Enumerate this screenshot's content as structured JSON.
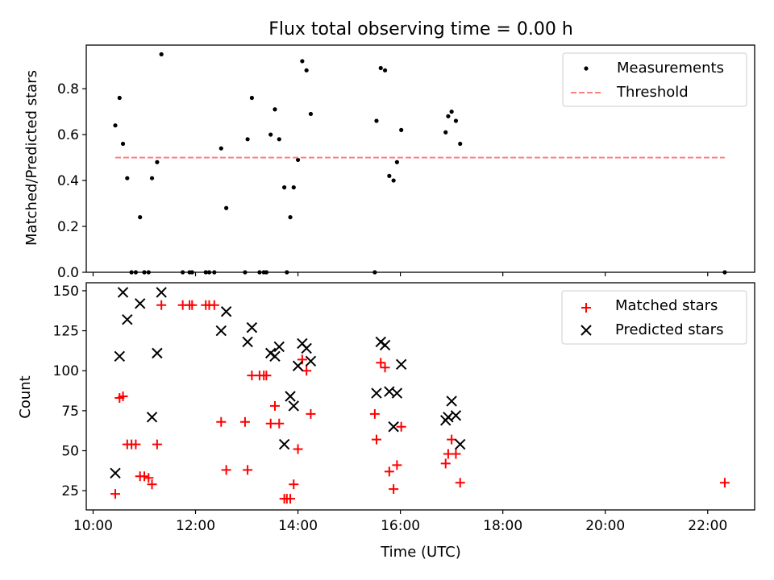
{
  "figure": {
    "title": "Flux total observing time = 0.00 h",
    "xlabel": "Time (UTC)",
    "x_ticks": [
      "10:00",
      "12:00",
      "14:00",
      "16:00",
      "18:00",
      "20:00",
      "22:00"
    ]
  },
  "chart_data": [
    {
      "type": "scatter",
      "panel": "top",
      "ylabel": "Matched/Predicted stars",
      "xlim": [
        "09:52",
        "22:55"
      ],
      "ylim": [
        0,
        0.99
      ],
      "y_ticks": [
        "0.0",
        "0.2",
        "0.4",
        "0.6",
        "0.8"
      ],
      "legend": {
        "placement": "top-right",
        "entries": [
          "Measurements",
          "Threshold"
        ]
      },
      "series": [
        {
          "name": "Measurements",
          "color": "#000000",
          "marker": "dot",
          "points": [
            [
              "10:26",
              0.64
            ],
            [
              "10:31",
              0.76
            ],
            [
              "10:35",
              0.56
            ],
            [
              "10:40",
              0.41
            ],
            [
              "10:45",
              0.0
            ],
            [
              "10:50",
              0.0
            ],
            [
              "10:55",
              0.24
            ],
            [
              "11:00",
              0.0
            ],
            [
              "11:05",
              0.0
            ],
            [
              "11:09",
              0.41
            ],
            [
              "11:15",
              0.48
            ],
            [
              "11:20",
              0.95
            ],
            [
              "11:45",
              0.0
            ],
            [
              "11:53",
              0.0
            ],
            [
              "11:56",
              0.0
            ],
            [
              "12:12",
              0.0
            ],
            [
              "12:16",
              0.0
            ],
            [
              "12:22",
              0.0
            ],
            [
              "12:30",
              0.54
            ],
            [
              "12:36",
              0.28
            ],
            [
              "12:58",
              0.0
            ],
            [
              "13:01",
              0.58
            ],
            [
              "13:06",
              0.76
            ],
            [
              "13:15",
              0.0
            ],
            [
              "13:20",
              0.0
            ],
            [
              "13:23",
              0.0
            ],
            [
              "13:28",
              0.6
            ],
            [
              "13:33",
              0.71
            ],
            [
              "13:38",
              0.58
            ],
            [
              "13:44",
              0.37
            ],
            [
              "13:47",
              0.0
            ],
            [
              "13:51",
              0.24
            ],
            [
              "13:55",
              0.37
            ],
            [
              "14:00",
              0.49
            ],
            [
              "14:05",
              0.92
            ],
            [
              "14:10",
              0.88
            ],
            [
              "14:15",
              0.69
            ],
            [
              "15:30",
              0.0
            ],
            [
              "15:32",
              0.66
            ],
            [
              "15:37",
              0.89
            ],
            [
              "15:42",
              0.88
            ],
            [
              "15:47",
              0.42
            ],
            [
              "15:52",
              0.4
            ],
            [
              "15:56",
              0.48
            ],
            [
              "16:01",
              0.62
            ],
            [
              "16:53",
              0.61
            ],
            [
              "16:56",
              0.68
            ],
            [
              "17:00",
              0.7
            ],
            [
              "17:05",
              0.66
            ],
            [
              "17:10",
              0.56
            ],
            [
              "22:20",
              0.0
            ]
          ]
        },
        {
          "name": "Threshold",
          "color": "#ff7f7f",
          "style": "dashed",
          "points": [
            [
              "10:26",
              0.5
            ],
            [
              "22:20",
              0.5
            ]
          ]
        }
      ]
    },
    {
      "type": "scatter",
      "panel": "bottom",
      "ylabel": "Count",
      "xlim": [
        "09:52",
        "22:55"
      ],
      "ylim": [
        13,
        155
      ],
      "y_ticks": [
        "25",
        "50",
        "75",
        "100",
        "125",
        "150"
      ],
      "legend": {
        "placement": "top-right",
        "entries": [
          "Matched stars",
          "Predicted stars"
        ]
      },
      "series": [
        {
          "name": "Matched stars",
          "color": "#ff0000",
          "marker": "plus",
          "points": [
            [
              "10:26",
              23
            ],
            [
              "10:31",
              83
            ],
            [
              "10:35",
              84
            ],
            [
              "10:40",
              54
            ],
            [
              "10:45",
              54
            ],
            [
              "10:50",
              54
            ],
            [
              "10:55",
              34
            ],
            [
              "11:00",
              34
            ],
            [
              "11:05",
              33
            ],
            [
              "11:09",
              29
            ],
            [
              "11:15",
              54
            ],
            [
              "11:20",
              141
            ],
            [
              "11:45",
              141
            ],
            [
              "11:53",
              141
            ],
            [
              "11:56",
              141
            ],
            [
              "12:12",
              141
            ],
            [
              "12:16",
              141
            ],
            [
              "12:22",
              141
            ],
            [
              "12:30",
              68
            ],
            [
              "12:36",
              38
            ],
            [
              "12:58",
              68
            ],
            [
              "13:01",
              38
            ],
            [
              "13:06",
              97
            ],
            [
              "13:15",
              97
            ],
            [
              "13:20",
              97
            ],
            [
              "13:23",
              97
            ],
            [
              "13:28",
              67
            ],
            [
              "13:33",
              78
            ],
            [
              "13:38",
              67
            ],
            [
              "13:44",
              20
            ],
            [
              "13:47",
              20
            ],
            [
              "13:51",
              20
            ],
            [
              "13:55",
              29
            ],
            [
              "14:00",
              51
            ],
            [
              "14:05",
              107
            ],
            [
              "14:10",
              100
            ],
            [
              "14:15",
              73
            ],
            [
              "15:30",
              73
            ],
            [
              "15:32",
              57
            ],
            [
              "15:37",
              105
            ],
            [
              "15:42",
              102
            ],
            [
              "15:47",
              37
            ],
            [
              "15:52",
              26
            ],
            [
              "15:56",
              41
            ],
            [
              "16:01",
              65
            ],
            [
              "16:53",
              42
            ],
            [
              "16:56",
              48
            ],
            [
              "17:00",
              57
            ],
            [
              "17:05",
              48
            ],
            [
              "17:10",
              30
            ],
            [
              "22:20",
              30
            ]
          ]
        },
        {
          "name": "Predicted stars",
          "color": "#000000",
          "marker": "x",
          "points": [
            [
              "10:26",
              36
            ],
            [
              "10:31",
              109
            ],
            [
              "10:35",
              149
            ],
            [
              "10:40",
              132
            ],
            [
              "10:55",
              142
            ],
            [
              "11:09",
              71
            ],
            [
              "11:15",
              111
            ],
            [
              "11:20",
              149
            ],
            [
              "12:30",
              125
            ],
            [
              "12:36",
              137
            ],
            [
              "13:01",
              118
            ],
            [
              "13:06",
              127
            ],
            [
              "13:28",
              111
            ],
            [
              "13:33",
              109
            ],
            [
              "13:38",
              115
            ],
            [
              "13:44",
              54
            ],
            [
              "13:51",
              84
            ],
            [
              "13:55",
              78
            ],
            [
              "14:00",
              103
            ],
            [
              "14:05",
              117
            ],
            [
              "14:10",
              114
            ],
            [
              "14:15",
              106
            ],
            [
              "15:32",
              86
            ],
            [
              "15:37",
              118
            ],
            [
              "15:42",
              116
            ],
            [
              "15:47",
              87
            ],
            [
              "15:52",
              65
            ],
            [
              "15:56",
              86
            ],
            [
              "16:01",
              104
            ],
            [
              "16:53",
              69
            ],
            [
              "16:56",
              71
            ],
            [
              "17:00",
              81
            ],
            [
              "17:05",
              72
            ],
            [
              "17:10",
              54
            ]
          ]
        }
      ]
    }
  ]
}
